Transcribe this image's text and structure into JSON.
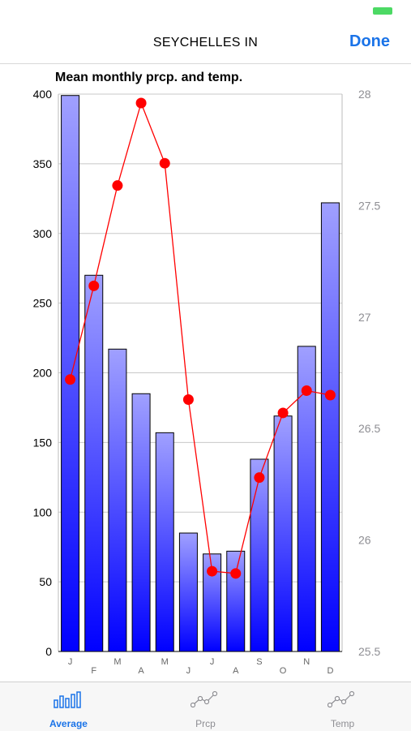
{
  "header": {
    "title": "SEYCHELLES IN",
    "done_label": "Done"
  },
  "colors": {
    "accent": "#1a73e8",
    "bar_top": "#a0a0ff",
    "bar_bottom": "#0000ff",
    "temp_line": "#ff0000",
    "battery": "#4cd964"
  },
  "chart_data": {
    "type": "bar",
    "title": "Mean monthly prcp. and temp.",
    "categories": [
      "J",
      "F",
      "M",
      "A",
      "M",
      "J",
      "J",
      "A",
      "S",
      "O",
      "N",
      "D"
    ],
    "series": [
      {
        "type": "bar",
        "axis": "left",
        "values": [
          399,
          270,
          217,
          185,
          157,
          85,
          70,
          72,
          138,
          169,
          219,
          322
        ]
      },
      {
        "type": "line",
        "axis": "right",
        "values": [
          26.72,
          27.14,
          27.59,
          27.96,
          27.69,
          26.63,
          25.86,
          25.85,
          26.28,
          26.57,
          26.67,
          26.65
        ]
      }
    ],
    "y_left": {
      "range": [
        0,
        400
      ],
      "ticks": [
        "0",
        "50",
        "100",
        "150",
        "200",
        "250",
        "300",
        "350",
        "400"
      ]
    },
    "y_right": {
      "range": [
        25.5,
        28
      ],
      "ticks": [
        "25.5",
        "26",
        "26.5",
        "27",
        "27.5",
        "28"
      ]
    },
    "grid": true
  },
  "tabs": [
    {
      "label": "Average",
      "icon": "bar-chart-icon",
      "active": true
    },
    {
      "label": "Prcp",
      "icon": "line-chart-icon",
      "active": false
    },
    {
      "label": "Temp",
      "icon": "line-chart-icon",
      "active": false
    }
  ]
}
